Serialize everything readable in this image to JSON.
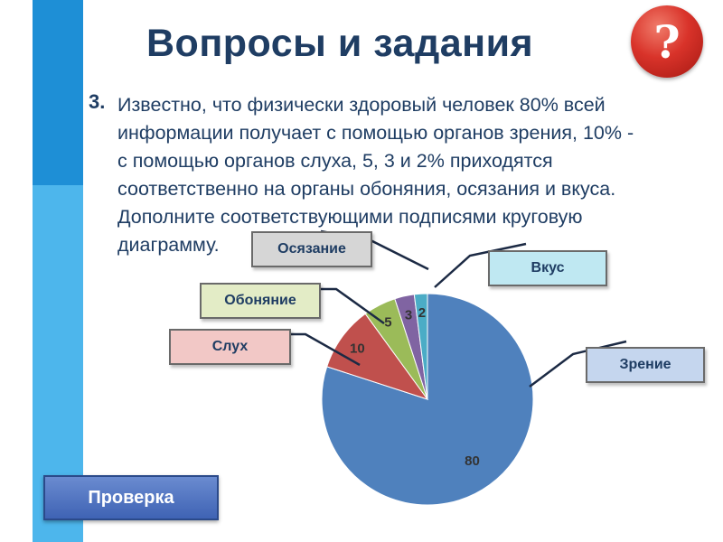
{
  "header": {
    "title": "Вопросы и задания",
    "help_symbol": "?"
  },
  "question": {
    "number": "3.",
    "lines": [
      "Известно, что физически здоровый человек 80% всей",
      "информации получает с помощью органов зрения, 10% -",
      "с помощью органов слуха, 5, 3 и 2% приходятся",
      "соответственно на органы обоняния, осязания и вкуса.",
      "Дополните соответствующими подписями круговую",
      "диаграмму."
    ]
  },
  "labels": {
    "osyazanie": "Осязание",
    "vkus": "Вкус",
    "obonyanie": "Обоняние",
    "sluh": "Слух",
    "zrenie": "Зрение"
  },
  "check_button": "Проверка",
  "colors": {
    "sidebar_dark": "#1e8fd6",
    "sidebar_light": "#4db6ec",
    "title": "#1f3d63",
    "slice_zrenie": "#4f81bd",
    "slice_sluh": "#c0504d",
    "slice_obonyanie": "#9bbb59",
    "slice_osyazanie": "#8064a2",
    "slice_vkus": "#4bacc6"
  },
  "chart_data": {
    "type": "pie",
    "values": [
      80,
      10,
      5,
      3,
      2
    ],
    "value_labels": [
      "80",
      "10",
      "5",
      "3",
      "2"
    ],
    "colors": [
      "#4f81bd",
      "#c0504d",
      "#9bbb59",
      "#8064a2",
      "#4bacc6"
    ]
  }
}
